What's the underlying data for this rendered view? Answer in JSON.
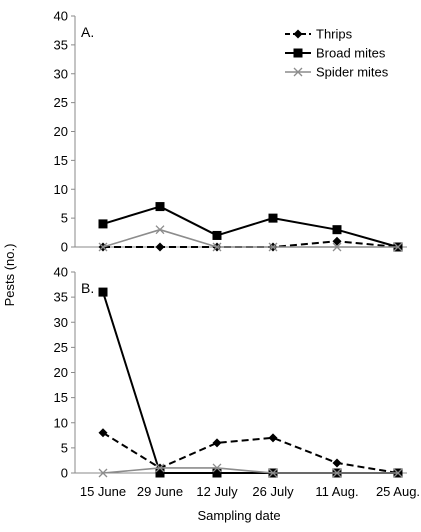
{
  "chart_data": [
    {
      "type": "line",
      "panel_label": "A.",
      "categories": [
        "15 June",
        "29 June",
        "12 July",
        "26 July",
        "11 Aug.",
        "25 Aug."
      ],
      "ylim": [
        0,
        40
      ],
      "yticks": [
        0,
        5,
        10,
        15,
        20,
        25,
        30,
        35,
        40
      ],
      "series": [
        {
          "name": "Thrips",
          "values": [
            0,
            0,
            0,
            0,
            1,
            0
          ],
          "color": "#000000",
          "dash": "dashed",
          "marker": "diamond"
        },
        {
          "name": "Broad mites",
          "values": [
            4,
            7,
            2,
            5,
            3,
            0
          ],
          "color": "#000000",
          "dash": "solid",
          "marker": "square"
        },
        {
          "name": "Spider mites",
          "values": [
            0,
            3,
            0,
            0,
            0,
            0
          ],
          "color": "#8c8c8c",
          "dash": "solid",
          "marker": "x"
        }
      ],
      "legend": "top-right",
      "grid": false
    },
    {
      "type": "line",
      "panel_label": "B.",
      "categories": [
        "15 June",
        "29 June",
        "12 July",
        "26 July",
        "11 Aug.",
        "25 Aug."
      ],
      "ylim": [
        0,
        40
      ],
      "yticks": [
        0,
        5,
        10,
        15,
        20,
        25,
        30,
        35,
        40
      ],
      "series": [
        {
          "name": "Thrips",
          "values": [
            8,
            1,
            6,
            7,
            2,
            0
          ],
          "color": "#000000",
          "dash": "dashed",
          "marker": "diamond"
        },
        {
          "name": "Broad mites",
          "values": [
            36,
            0,
            0,
            0,
            0,
            0
          ],
          "color": "#000000",
          "dash": "solid",
          "marker": "square"
        },
        {
          "name": "Spider mites",
          "values": [
            0,
            1,
            1,
            0,
            0,
            0
          ],
          "color": "#8c8c8c",
          "dash": "solid",
          "marker": "x"
        }
      ],
      "grid": false
    }
  ],
  "ylabel": "Pests (no.)",
  "xlabel": "Sampling date"
}
